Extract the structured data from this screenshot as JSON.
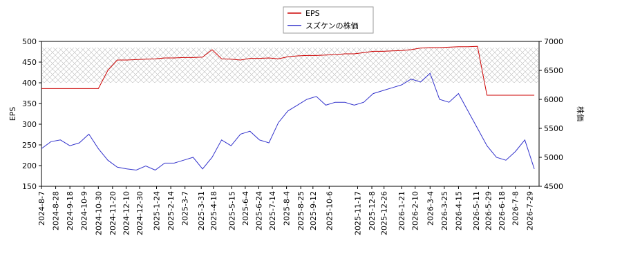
{
  "chart_data": {
    "type": "line",
    "x": [
      "2024-8-7",
      "2024-8-21",
      "2024-9-4",
      "2024-9-18",
      "2024-10-2",
      "2024-10-16",
      "2024-10-30",
      "2024-11-13",
      "2024-11-27",
      "2024-12-11",
      "2024-12-25",
      "2025-1-8",
      "2025-1-22",
      "2025-2-5",
      "2025-2-19",
      "2025-3-5",
      "2025-3-19",
      "2025-4-2",
      "2025-4-16",
      "2025-4-30",
      "2025-5-14",
      "2025-5-28",
      "2025-6-11",
      "2025-6-25",
      "2025-7-9",
      "2025-7-23",
      "2025-8-6",
      "2025-8-20",
      "2025-9-3",
      "2025-9-17",
      "2025-10-1",
      "2025-10-15",
      "2025-10-29",
      "2025-11-12",
      "2025-11-26",
      "2025-12-10",
      "2025-12-24",
      "2026-1-7",
      "2026-1-21",
      "2026-2-4",
      "2026-2-18",
      "2026-3-4",
      "2026-3-18",
      "2026-4-1",
      "2026-4-15",
      "2026-4-29",
      "2026-5-13",
      "2026-5-27",
      "2026-6-10",
      "2026-6-24",
      "2026-7-8",
      "2026-7-22",
      "2026-8-5"
    ],
    "series": [
      {
        "name": "EPS",
        "color": "#cc0000",
        "axis": "y",
        "values": [
          386,
          386,
          386,
          386,
          386,
          386,
          386,
          430,
          455,
          455,
          456,
          457,
          458,
          460,
          460,
          461,
          461,
          462,
          480,
          458,
          457,
          455,
          459,
          459,
          460,
          458,
          463,
          465,
          466,
          466,
          467,
          468,
          470,
          470,
          473,
          476,
          476,
          477,
          478,
          480,
          484,
          485,
          485,
          486,
          487,
          487,
          488,
          370,
          370,
          370,
          370,
          370,
          370
        ]
      },
      {
        "name": "スズケンの株価",
        "color": "#3333cc",
        "axis": "y2",
        "values": [
          5150,
          5270,
          5300,
          5200,
          5250,
          5400,
          5150,
          4950,
          4830,
          4800,
          4780,
          4850,
          4780,
          4900,
          4900,
          4950,
          5000,
          4800,
          5000,
          5300,
          5200,
          5400,
          5450,
          5300,
          5250,
          5600,
          5800,
          5900,
          6000,
          6050,
          5900,
          5950,
          5950,
          5900,
          5950,
          6100,
          6150,
          6200,
          6250,
          6350,
          6300,
          6450,
          6000,
          5950,
          6100,
          5800,
          5500,
          5200,
          5000,
          4950,
          5100,
          5300,
          4800
        ]
      }
    ],
    "xlim": [
      "2024-8-7",
      "2026-8-12"
    ],
    "xticks": [
      "2024-8-7",
      "2024-8-28",
      "2024-9-18",
      "2024-10-9",
      "2024-10-30",
      "2024-11-20",
      "2024-12-10",
      "2024-12-30",
      "2025-1-24",
      "2025-2-14",
      "2025-3-7",
      "2025-3-31",
      "2025-4-18",
      "2025-5-15",
      "2025-6-4",
      "2025-6-24",
      "2025-7-14",
      "2025-8-4",
      "2025-8-25",
      "2025-9-12",
      "2025-10-6",
      "2025-11-17",
      "2025-12-8",
      "2025-12-26",
      "2026-1-21",
      "2026-2-10",
      "2026-3-4",
      "2026-3-25",
      "2026-4-15",
      "2026-5-11",
      "2026-5-29",
      "2026-6-18",
      "2026-7-8",
      "2026-7-29"
    ],
    "ylim": [
      150,
      500
    ],
    "yticks": [
      150,
      200,
      250,
      300,
      350,
      400,
      450,
      500
    ],
    "y2lim": [
      4500,
      7000
    ],
    "y2ticks": [
      4500,
      5000,
      5500,
      6000,
      6500,
      7000
    ],
    "ylabel": "EPS",
    "y2label": "株価"
  }
}
